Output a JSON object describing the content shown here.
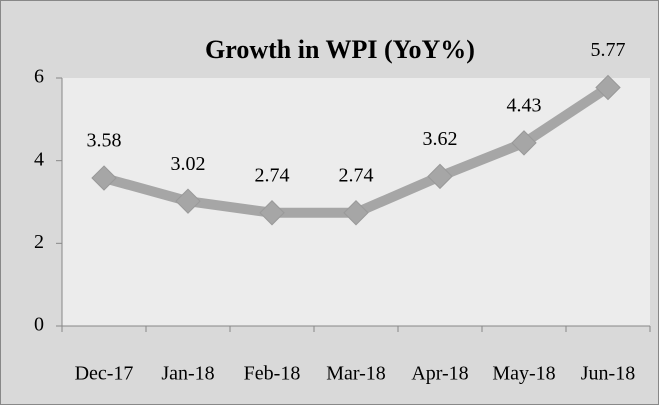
{
  "chart_data": {
    "type": "line",
    "title": "Growth in WPI (YoY%)",
    "categories": [
      "Dec-17",
      "Jan-18",
      "Feb-18",
      "Mar-18",
      "Apr-18",
      "May-18",
      "Jun-18"
    ],
    "values": [
      3.58,
      3.02,
      2.74,
      2.74,
      3.62,
      4.43,
      5.77
    ],
    "color": "#a6a6a6",
    "ylim": [
      0,
      6
    ],
    "yticks": [
      0,
      2,
      4,
      6
    ]
  }
}
